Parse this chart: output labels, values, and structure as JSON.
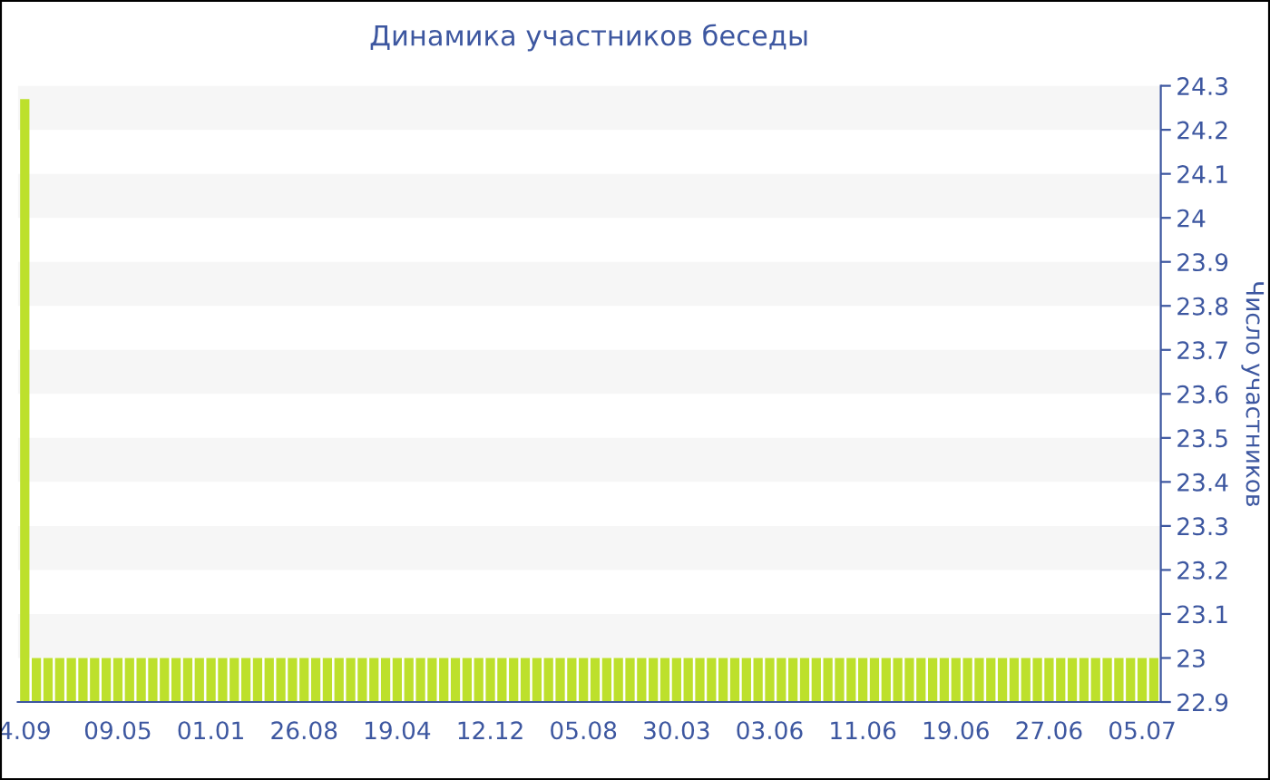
{
  "chart_data": {
    "type": "bar",
    "title": "Динамика участников беседы",
    "ylabel": "Число участников",
    "categories": [
      "4.09",
      null,
      null,
      null,
      null,
      null,
      null,
      null,
      "09.05",
      null,
      null,
      null,
      null,
      null,
      null,
      null,
      "01.01",
      null,
      null,
      null,
      null,
      null,
      null,
      null,
      "26.08",
      null,
      null,
      null,
      null,
      null,
      null,
      null,
      "19.04",
      null,
      null,
      null,
      null,
      null,
      null,
      null,
      "12.12",
      null,
      null,
      null,
      null,
      null,
      null,
      null,
      "05.08",
      null,
      null,
      null,
      null,
      null,
      null,
      null,
      "30.03",
      null,
      null,
      null,
      null,
      null,
      null,
      null,
      "03.06",
      null,
      null,
      null,
      null,
      null,
      null,
      null,
      "11.06",
      null,
      null,
      null,
      null,
      null,
      null,
      null,
      "19.06",
      null,
      null,
      null,
      null,
      null,
      null,
      null,
      "27.06",
      null,
      null,
      null,
      null,
      null,
      null,
      null,
      "05.07",
      null
    ],
    "values": [
      24.27,
      23,
      23,
      23,
      23,
      23,
      23,
      23,
      23,
      23,
      23,
      23,
      23,
      23,
      23,
      23,
      23,
      23,
      23,
      23,
      23,
      23,
      23,
      23,
      23,
      23,
      23,
      23,
      23,
      23,
      23,
      23,
      23,
      23,
      23,
      23,
      23,
      23,
      23,
      23,
      23,
      23,
      23,
      23,
      23,
      23,
      23,
      23,
      23,
      23,
      23,
      23,
      23,
      23,
      23,
      23,
      23,
      23,
      23,
      23,
      23,
      23,
      23,
      23,
      23,
      23,
      23,
      23,
      23,
      23,
      23,
      23,
      23,
      23,
      23,
      23,
      23,
      23,
      23,
      23,
      23,
      23,
      23,
      23,
      23,
      23,
      23,
      23,
      23,
      23,
      23,
      23,
      23,
      23,
      23,
      23,
      23,
      23
    ],
    "color": "#bde02c",
    "ylim": [
      22.9,
      24.3
    ],
    "yticks": [
      22.9,
      23,
      23.1,
      23.2,
      23.3,
      23.4,
      23.5,
      23.6,
      23.7,
      23.8,
      23.9,
      24,
      24.1,
      24.2,
      24.3
    ],
    "bands": [
      {
        "axis": "y",
        "from": 23,
        "to": 23.1,
        "color": "#f6f6f6"
      },
      {
        "axis": "y",
        "from": 23.2,
        "to": 23.3,
        "color": "#f6f6f6"
      },
      {
        "axis": "y",
        "from": 23.4,
        "to": 23.5,
        "color": "#f6f6f6"
      },
      {
        "axis": "y",
        "from": 23.6,
        "to": 23.7,
        "color": "#f6f6f6"
      },
      {
        "axis": "y",
        "from": 23.8,
        "to": 23.9,
        "color": "#f6f6f6"
      },
      {
        "axis": "y",
        "from": 24,
        "to": 24.1,
        "color": "#f6f6f6"
      },
      {
        "axis": "y",
        "from": 24.2,
        "to": 24.3,
        "color": "#f6f6f6"
      }
    ],
    "legend": false
  }
}
